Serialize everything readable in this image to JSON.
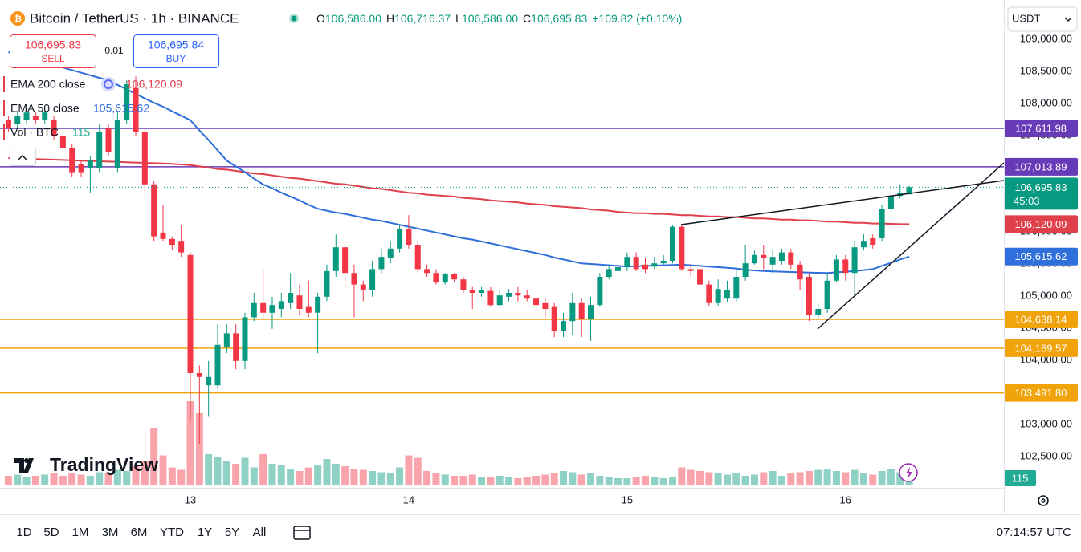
{
  "header": {
    "symbol": "Bitcoin / TetherUS · 1h · BINANCE",
    "ohlc": [
      {
        "key": "O",
        "value": "106,586.00"
      },
      {
        "key": "H",
        "value": "106,716.37"
      },
      {
        "key": "L",
        "value": "106,586.00"
      },
      {
        "key": "C",
        "value": "106,695.83"
      }
    ],
    "change": "+109.82 (+0.10%)"
  },
  "trade": {
    "sell_price": "106,695.83",
    "sell": "SELL",
    "spread": "0.01",
    "buy_price": "106,695.84",
    "buy": "BUY"
  },
  "currency": "USDT",
  "logo": "TradingView",
  "toolbar": {
    "ranges": [
      "1D",
      "5D",
      "1M",
      "3M",
      "6M",
      "YTD",
      "1Y",
      "5Y",
      "All"
    ],
    "clock": "07:14:57 UTC"
  },
  "chart_data": {
    "type": "candlestick",
    "up_color": "#089981",
    "down_color": "#f23645",
    "ylim": [
      102012.5,
      109512.5
    ],
    "yticks": [
      {
        "value": 102500,
        "label": "102,500.00"
      },
      {
        "value": 103000,
        "label": "103,000.00"
      },
      {
        "value": 103500,
        "label": "103,500.00"
      },
      {
        "value": 104000,
        "label": "104,000.00"
      },
      {
        "value": 104500,
        "label": "104,500.00"
      },
      {
        "value": 105000,
        "label": "105,000.00"
      },
      {
        "value": 105500,
        "label": "105,500.00"
      },
      {
        "value": 106000,
        "label": "106,000.00"
      },
      {
        "value": 106500,
        "label": "106,500.00"
      },
      {
        "value": 107000,
        "label": "107,000.00"
      },
      {
        "value": 107500,
        "label": "107,500.00"
      },
      {
        "value": 108000,
        "label": "108,000.00"
      },
      {
        "value": 108500,
        "label": "108,500.00"
      },
      {
        "value": 109000,
        "label": "109,000.00"
      }
    ],
    "grid": false,
    "categories": [
      null,
      null,
      null,
      null,
      null,
      null,
      null,
      null,
      null,
      null,
      null,
      null,
      null,
      null,
      null,
      null,
      null,
      null,
      null,
      null,
      "13",
      null,
      null,
      null,
      null,
      null,
      null,
      null,
      null,
      null,
      null,
      null,
      null,
      null,
      null,
      null,
      null,
      null,
      null,
      null,
      null,
      null,
      null,
      null,
      "14",
      null,
      null,
      null,
      null,
      null,
      null,
      null,
      null,
      null,
      null,
      null,
      null,
      null,
      null,
      null,
      null,
      null,
      null,
      null,
      null,
      null,
      null,
      null,
      "15",
      null,
      null,
      null,
      null,
      null,
      null,
      null,
      null,
      null,
      null,
      null,
      null,
      null,
      null,
      null,
      null,
      null,
      null,
      null,
      null,
      null,
      null,
      null,
      "16",
      null,
      null,
      null,
      null,
      null,
      null,
      null
    ],
    "open": [
      107740,
      107680,
      107740,
      107800,
      107740,
      107740,
      107490,
      107300,
      107050,
      106990,
      106990,
      107610,
      106990,
      107740,
      108240,
      107550,
      106740,
      105990,
      105890,
      105860,
      105640,
      103800,
      103610,
      103610,
      104210,
      104420,
      103990,
      104670,
      104890,
      104740,
      104800,
      104890,
      105010,
      104830,
      104740,
      104990,
      105390,
      105760,
      105360,
      105180,
      105090,
      105420,
      105590,
      105740,
      106050,
      105800,
      105420,
      105360,
      105210,
      105340,
      105260,
      105090,
      105050,
      105080,
      104860,
      104990,
      105050,
      105010,
      104960,
      104890,
      104830,
      104450,
      104610,
      104890,
      104640,
      104860,
      105300,
      105390,
      105450,
      105610,
      105490,
      105460,
      105510,
      105550,
      106080,
      105420,
      105420,
      105180,
      104890,
      104960,
      104960,
      105300,
      105510,
      105640,
      105490,
      105550,
      105680,
      105490,
      105300,
      104710,
      104800,
      105240,
      105570,
      105360,
      105760,
      105900,
      105900,
      106350,
      106560,
      106586
    ],
    "high": [
      107800,
      107860,
      107930,
      107860,
      107930,
      107800,
      107550,
      107360,
      107110,
      107180,
      107680,
      107680,
      107860,
      108360,
      108420,
      107610,
      106800,
      106420,
      105930,
      106110,
      105680,
      103920,
      103990,
      104560,
      104560,
      104560,
      104740,
      105050,
      105420,
      104990,
      105050,
      105360,
      105180,
      105240,
      105050,
      105490,
      105960,
      105860,
      105490,
      105240,
      105550,
      105740,
      105860,
      106110,
      106260,
      105860,
      105490,
      105420,
      105360,
      105360,
      105300,
      105140,
      105140,
      105140,
      105090,
      105110,
      105140,
      105090,
      105050,
      104960,
      104890,
      104740,
      105050,
      104960,
      104990,
      105360,
      105490,
      105510,
      105680,
      105680,
      105590,
      105610,
      105640,
      106110,
      106110,
      105510,
      105490,
      105240,
      105260,
      105240,
      105420,
      105800,
      105710,
      105800,
      105710,
      105740,
      105740,
      105550,
      105360,
      104890,
      105360,
      105640,
      105640,
      105860,
      105960,
      105960,
      106420,
      106720,
      106740,
      106716.37
    ],
    "low": [
      107550,
      107610,
      107680,
      107680,
      107680,
      107430,
      107240,
      106860,
      106860,
      106610,
      106930,
      107180,
      106930,
      107680,
      107490,
      106610,
      105860,
      105860,
      105710,
      105610,
      103050,
      102690,
      103120,
      103560,
      104110,
      103860,
      103860,
      104610,
      104610,
      104490,
      104670,
      104800,
      104710,
      104670,
      104110,
      104920,
      105300,
      105110,
      104670,
      104920,
      104990,
      105360,
      105510,
      105680,
      105740,
      105360,
      105300,
      105180,
      105180,
      105210,
      105050,
      104800,
      104990,
      104830,
      104830,
      104920,
      104920,
      104920,
      104760,
      104670,
      104360,
      104360,
      104390,
      104360,
      104300,
      104830,
      105260,
      105340,
      105390,
      105390,
      105360,
      105420,
      105490,
      105510,
      105390,
      105300,
      105110,
      104840,
      104840,
      104910,
      104910,
      105240,
      105490,
      105420,
      105340,
      105490,
      105420,
      105090,
      104610,
      104640,
      104740,
      105210,
      105240,
      105010,
      105710,
      105740,
      105860,
      106310,
      106520,
      106586
    ],
    "close": [
      107610,
      107800,
      107860,
      107740,
      107860,
      107490,
      107300,
      106930,
      106930,
      107110,
      107550,
      107240,
      107740,
      108300,
      107550,
      106740,
      105930,
      105890,
      105800,
      105680,
      103800,
      103740,
      103740,
      104240,
      104420,
      103990,
      104670,
      104890,
      104740,
      104860,
      104920,
      105050,
      104800,
      104740,
      104990,
      105390,
      105760,
      105360,
      105180,
      105090,
      105420,
      105610,
      105740,
      106050,
      105800,
      105420,
      105360,
      105210,
      105340,
      105260,
      105090,
      105050,
      105090,
      104860,
      105010,
      105050,
      105010,
      104960,
      104860,
      104800,
      104450,
      104610,
      104890,
      104640,
      104860,
      105300,
      105420,
      105450,
      105610,
      105420,
      105420,
      105510,
      105550,
      106080,
      105420,
      105390,
      105180,
      104890,
      105110,
      105090,
      105300,
      105510,
      105640,
      105590,
      105610,
      105680,
      105490,
      105260,
      104710,
      104800,
      105240,
      105570,
      105360,
      105760,
      105860,
      105800,
      106350,
      106560,
      106610,
      106695.83
    ],
    "volume": [
      80,
      90,
      70,
      80,
      90,
      100,
      80,
      100,
      90,
      80,
      110,
      100,
      130,
      120,
      160,
      200,
      480,
      250,
      150,
      130,
      700,
      600,
      260,
      240,
      200,
      180,
      230,
      150,
      260,
      180,
      170,
      140,
      120,
      150,
      170,
      220,
      180,
      160,
      140,
      130,
      120,
      110,
      100,
      150,
      250,
      230,
      120,
      100,
      90,
      80,
      80,
      90,
      70,
      70,
      80,
      70,
      60,
      70,
      80,
      90,
      100,
      120,
      110,
      90,
      100,
      80,
      70,
      60,
      60,
      70,
      80,
      70,
      60,
      70,
      150,
      130,
      120,
      110,
      100,
      90,
      100,
      80,
      90,
      110,
      120,
      80,
      100,
      110,
      120,
      130,
      140,
      120,
      110,
      130,
      100,
      90,
      120,
      140,
      110,
      115
    ],
    "volume_legend": {
      "name": "Vol · BTC",
      "value": "115"
    },
    "volume_badge": "115",
    "series": [
      {
        "name": "EMA 200 close",
        "color": "#e0404a",
        "last": "106,120.09",
        "values": [
          107150,
          107145,
          107140,
          107135,
          107130,
          107125,
          107120,
          107115,
          107110,
          107105,
          107100,
          107095,
          107090,
          107085,
          107080,
          107075,
          107070,
          107065,
          107060,
          107050,
          107040,
          107020,
          107000,
          106980,
          106970,
          106950,
          106930,
          106910,
          106900,
          106880,
          106860,
          106840,
          106830,
          106810,
          106790,
          106770,
          106750,
          106740,
          106720,
          106700,
          106680,
          106670,
          106650,
          106630,
          106610,
          106600,
          106580,
          106570,
          106560,
          106550,
          106530,
          106520,
          106510,
          106490,
          106480,
          106470,
          106460,
          106440,
          106430,
          106420,
          106400,
          106390,
          106380,
          106370,
          106350,
          106340,
          106330,
          106310,
          106300,
          106290,
          106290,
          106280,
          106280,
          106270,
          106260,
          106260,
          106250,
          106240,
          106240,
          106230,
          106230,
          106220,
          106210,
          106210,
          106200,
          106190,
          106190,
          106180,
          106180,
          106170,
          106160,
          106160,
          106150,
          106140,
          106140,
          106130,
          106130,
          106125,
          106120,
          106120.09
        ]
      },
      {
        "name": "EMA 50 close",
        "color": "#2f6fdb",
        "last": "105,615.62",
        "values": [
          108800,
          108760,
          108720,
          108680,
          108640,
          108600,
          108560,
          108520,
          108480,
          108440,
          108400,
          108360,
          108290,
          108220,
          108150,
          108080,
          108010,
          107950,
          107880,
          107810,
          107740,
          107580,
          107430,
          107270,
          107110,
          107020,
          106930,
          106830,
          106740,
          106680,
          106610,
          106550,
          106490,
          106420,
          106360,
          106330,
          106300,
          106280,
          106250,
          106220,
          106190,
          106170,
          106140,
          106110,
          106080,
          106050,
          106020,
          105990,
          105960,
          105930,
          105900,
          105880,
          105850,
          105820,
          105790,
          105760,
          105730,
          105700,
          105670,
          105640,
          105600,
          105570,
          105540,
          105510,
          105500,
          105490,
          105480,
          105470,
          105460,
          105465,
          105470,
          105475,
          105480,
          105485,
          105490,
          105480,
          105470,
          105460,
          105450,
          105440,
          105430,
          105410,
          105400,
          105390,
          105385,
          105380,
          105375,
          105370,
          105365,
          105362,
          105360,
          105370,
          105380,
          105390,
          105405,
          105420,
          105470,
          105520,
          105570,
          105615.62
        ]
      }
    ],
    "levels": [
      {
        "value": 107611.98,
        "label": "107,611.98",
        "color": "#673ab7"
      },
      {
        "value": 107013.89,
        "label": "107,013.89",
        "color": "#673ab7"
      },
      {
        "value": 104638.14,
        "label": "104,638.14",
        "color": "#f0a30a"
      },
      {
        "value": 104189.57,
        "label": "104,189.57",
        "color": "#f0a30a"
      },
      {
        "value": 103491.8,
        "label": "103,491.80",
        "color": "#f0a30a"
      }
    ],
    "price_badge": {
      "label": "106,695.83",
      "countdown": "45:03"
    }
  }
}
